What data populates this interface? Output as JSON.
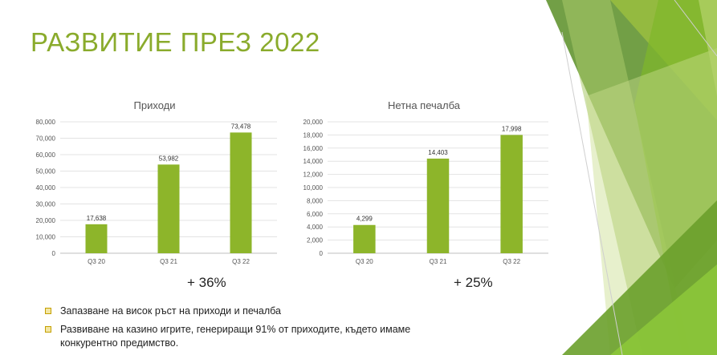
{
  "slide": {
    "title": "РАЗВИТИЕ ПРЕЗ 2022",
    "accent_color": "#8aab2c",
    "bar_color": "#8db52a"
  },
  "growth": {
    "revenue": "+ 36%",
    "profit": "+ 25%"
  },
  "bullets": [
    {
      "text": "Запазване на висок ръст на приходи и печалба",
      "icon": "square-bullet-icon"
    },
    {
      "text": "Развиване на казино игрите, генериращи 91% от приходите, където имаме конкурентно предимство.",
      "icon": "square-bullet-icon"
    }
  ],
  "chart_data": [
    {
      "type": "bar",
      "title": "Приходи",
      "categories": [
        "Q3 20",
        "Q3 21",
        "Q3 22"
      ],
      "values": [
        17638,
        53982,
        73478
      ],
      "value_labels": [
        "17,638",
        "53,982",
        "73,478"
      ],
      "ylim": [
        0,
        80000
      ],
      "yticks": [
        0,
        10000,
        20000,
        30000,
        40000,
        50000,
        60000,
        70000,
        80000
      ],
      "ytick_labels": [
        "0",
        "10,000",
        "20,000",
        "30,000",
        "40,000",
        "50,000",
        "60,000",
        "70,000",
        "80,000"
      ],
      "grid": true,
      "legend": "none"
    },
    {
      "type": "bar",
      "title": "Нетна печалба",
      "categories": [
        "Q3 20",
        "Q3 21",
        "Q3 22"
      ],
      "values": [
        4299,
        14403,
        17998
      ],
      "value_labels": [
        "4,299",
        "14,403",
        "17,998"
      ],
      "ylim": [
        0,
        20000
      ],
      "yticks": [
        0,
        2000,
        4000,
        6000,
        8000,
        10000,
        12000,
        14000,
        16000,
        18000,
        20000
      ],
      "ytick_labels": [
        "0",
        "2,000",
        "4,000",
        "6,000",
        "8,000",
        "10,000",
        "12,000",
        "14,000",
        "16,000",
        "18,000",
        "20,000"
      ],
      "grid": true,
      "legend": "none"
    }
  ]
}
